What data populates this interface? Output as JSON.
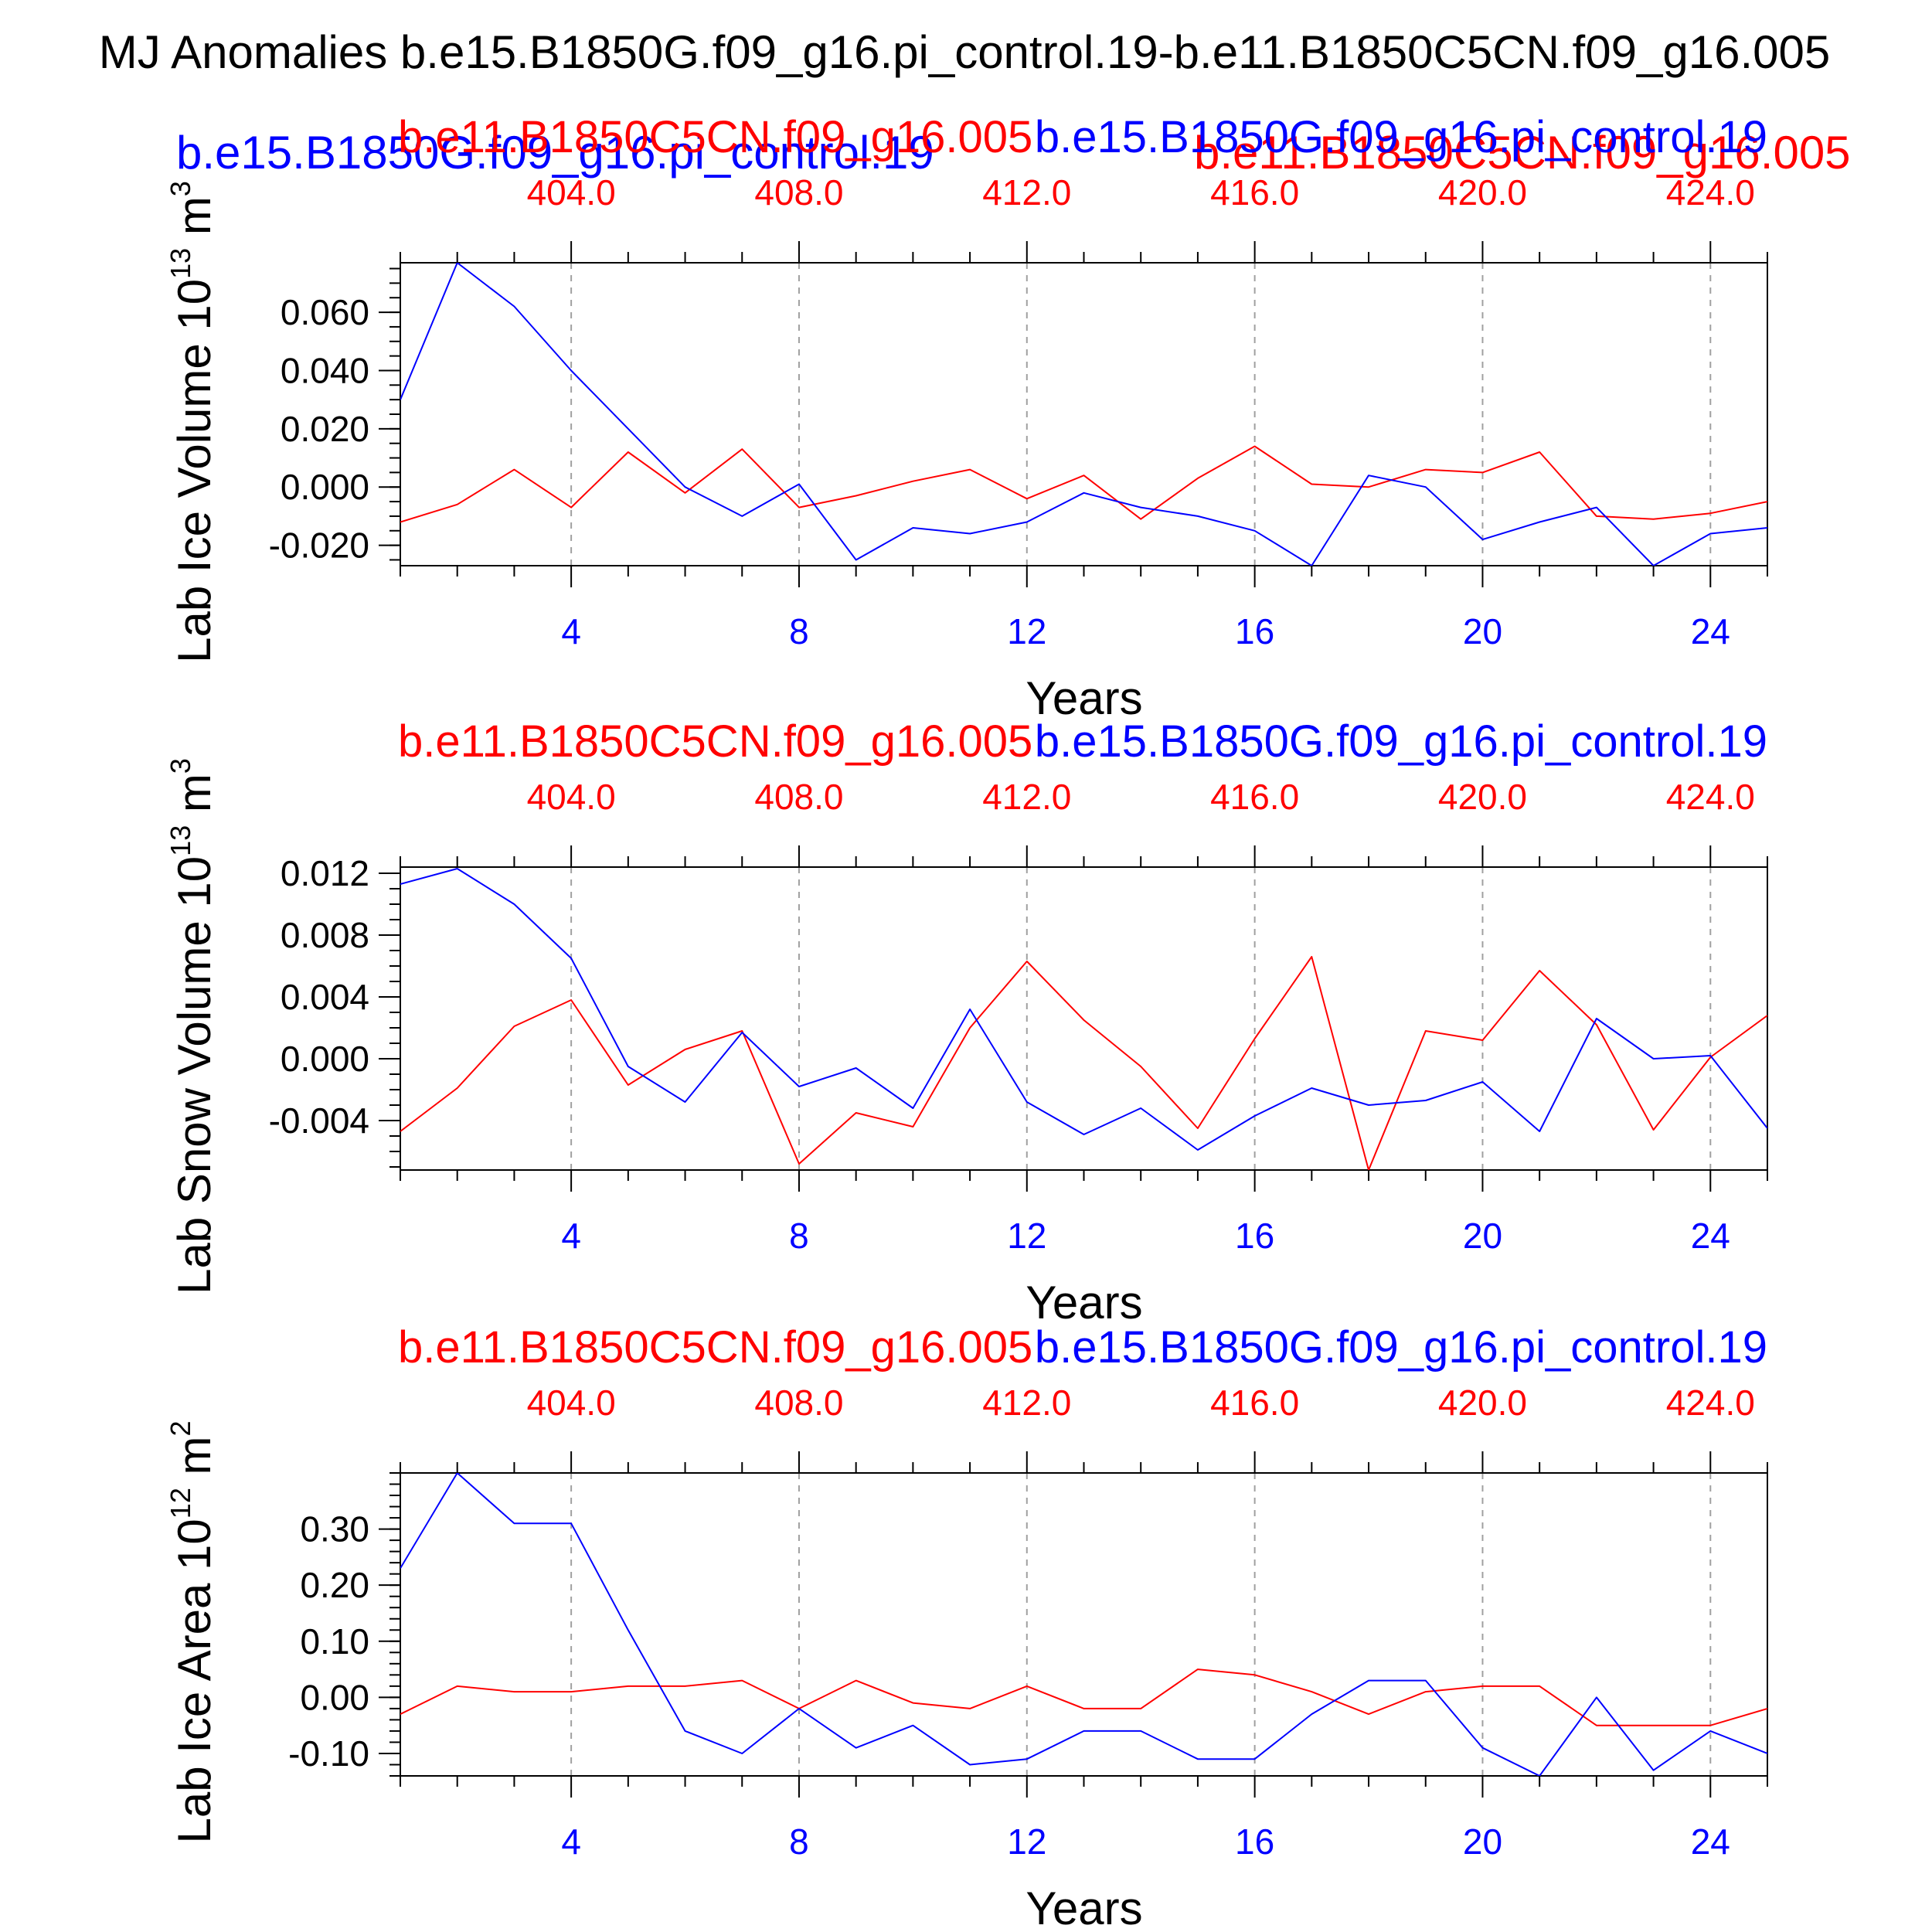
{
  "figure": {
    "title": "MJ Anomalies b.e15.B1850G.f09_g16.pi_control.19-b.e11.B1850C5CN.f09_g16.005",
    "legend_overlay": {
      "series_blue": "b.e15.B1850G.f09_g16.pi_control.19",
      "series_red": "b.e11.B1850C5CN.f09_g16.005"
    }
  },
  "colors": {
    "blue": "#0000ff",
    "red": "#ff0000",
    "axis": "#000000",
    "grid": "#a0a0a0"
  },
  "chart_data": [
    {
      "type": "line",
      "ylabel": "Lab Ice Volume 10",
      "ylabel_exp": "13",
      "ylabel_unit": " m",
      "ylabel_unit_exp": "3",
      "xlabel": "Years",
      "top_label_red": "b.e11.B1850C5CN.f09_g16.005",
      "top_label_blue": "b.e15.B1850G.f09_g16.pi_control.19",
      "xlim": [
        1,
        25
      ],
      "ylim": [
        -0.027,
        0.077
      ],
      "yticks": [
        -0.02,
        0.0,
        0.02,
        0.04,
        0.06
      ],
      "ytick_labels": [
        "-0.020",
        "0.000",
        "0.020",
        "0.040",
        "0.060"
      ],
      "yminor_step": 0.005,
      "xticks_bottom": [
        4,
        8,
        12,
        16,
        20,
        24
      ],
      "xtick_labels_bottom": [
        "4",
        "8",
        "12",
        "16",
        "20",
        "24"
      ],
      "xtick_labels_top": [
        "404.0",
        "408.0",
        "412.0",
        "416.0",
        "420.0",
        "424.0"
      ],
      "grid_x": [
        4,
        8,
        12,
        16,
        20,
        24
      ],
      "x": [
        1,
        2,
        3,
        4,
        5,
        6,
        7,
        8,
        9,
        10,
        11,
        12,
        13,
        14,
        15,
        16,
        17,
        18,
        19,
        20,
        21,
        22,
        23,
        24,
        25
      ],
      "series": [
        {
          "name": "b.e15.B1850G.f09_g16.pi_control.19",
          "color": "#0000ff",
          "values": [
            0.03,
            0.077,
            0.062,
            0.04,
            0.02,
            0.0,
            -0.01,
            0.001,
            -0.025,
            -0.014,
            -0.016,
            -0.012,
            -0.002,
            -0.007,
            -0.01,
            -0.015,
            -0.027,
            0.004,
            0.0,
            -0.018,
            -0.012,
            -0.007,
            -0.027,
            -0.016,
            -0.014
          ]
        },
        {
          "name": "b.e11.B1850C5CN.f09_g16.005",
          "color": "#ff0000",
          "values": [
            -0.012,
            -0.006,
            0.006,
            -0.007,
            0.012,
            -0.002,
            0.013,
            -0.007,
            -0.003,
            0.002,
            0.006,
            -0.004,
            0.004,
            -0.011,
            0.003,
            0.014,
            0.001,
            0.0,
            0.006,
            0.005,
            0.012,
            -0.01,
            -0.011,
            -0.009,
            -0.005
          ]
        }
      ]
    },
    {
      "type": "line",
      "ylabel": "Lab Snow Volume 10",
      "ylabel_exp": "13",
      "ylabel_unit": " m",
      "ylabel_unit_exp": "3",
      "xlabel": "Years",
      "top_label_red": "b.e11.B1850C5CN.f09_g16.005",
      "top_label_blue": "b.e15.B1850G.f09_g16.pi_control.19",
      "xlim": [
        1,
        25
      ],
      "ylim": [
        -0.0072,
        0.0124
      ],
      "yticks": [
        -0.004,
        0.0,
        0.004,
        0.008,
        0.012
      ],
      "ytick_labels": [
        "-0.004",
        "0.000",
        "0.004",
        "0.008",
        "0.012"
      ],
      "yminor_step": 0.001,
      "xticks_bottom": [
        4,
        8,
        12,
        16,
        20,
        24
      ],
      "xtick_labels_bottom": [
        "4",
        "8",
        "12",
        "16",
        "20",
        "24"
      ],
      "xtick_labels_top": [
        "404.0",
        "408.0",
        "412.0",
        "416.0",
        "420.0",
        "424.0"
      ],
      "grid_x": [
        4,
        8,
        12,
        16,
        20,
        24
      ],
      "x": [
        1,
        2,
        3,
        4,
        5,
        6,
        7,
        8,
        9,
        10,
        11,
        12,
        13,
        14,
        15,
        16,
        17,
        18,
        19,
        20,
        21,
        22,
        23,
        24,
        25
      ],
      "series": [
        {
          "name": "b.e15.B1850G.f09_g16.pi_control.19",
          "color": "#0000ff",
          "values": [
            0.0113,
            0.0123,
            0.01,
            0.0065,
            -0.0005,
            -0.0028,
            0.0017,
            -0.0018,
            -0.0006,
            -0.0032,
            0.0032,
            -0.0028,
            -0.0049,
            -0.0032,
            -0.0059,
            -0.0037,
            -0.0019,
            -0.003,
            -0.0027,
            -0.0015,
            -0.0047,
            0.0026,
            0.0,
            0.0002,
            -0.0045
          ]
        },
        {
          "name": "b.e11.B1850C5CN.f09_g16.005",
          "color": "#ff0000",
          "values": [
            -0.0047,
            -0.0019,
            0.0021,
            0.0038,
            -0.0017,
            0.0006,
            0.0018,
            -0.0068,
            -0.0035,
            -0.0044,
            0.002,
            0.0063,
            0.0025,
            -0.0005,
            -0.0045,
            0.0013,
            0.0066,
            -0.0072,
            0.0018,
            0.0012,
            0.0057,
            0.0022,
            -0.0046,
            0.0001,
            0.0028
          ]
        }
      ]
    },
    {
      "type": "line",
      "ylabel": "Lab Ice Area 10",
      "ylabel_exp": "12",
      "ylabel_unit": " m",
      "ylabel_unit_exp": "2",
      "xlabel": "Years",
      "top_label_red": "b.e11.B1850C5CN.f09_g16.005",
      "top_label_blue": "b.e15.B1850G.f09_g16.pi_control.19",
      "xlim": [
        1,
        25
      ],
      "ylim": [
        -0.14,
        0.4
      ],
      "yticks": [
        -0.1,
        0.0,
        0.1,
        0.2,
        0.3
      ],
      "ytick_labels": [
        "-0.10",
        "0.00",
        "0.10",
        "0.20",
        "0.30"
      ],
      "yminor_step": 0.02,
      "xticks_bottom": [
        4,
        8,
        12,
        16,
        20,
        24
      ],
      "xtick_labels_bottom": [
        "4",
        "8",
        "12",
        "16",
        "20",
        "24"
      ],
      "xtick_labels_top": [
        "404.0",
        "408.0",
        "412.0",
        "416.0",
        "420.0",
        "424.0"
      ],
      "grid_x": [
        4,
        8,
        12,
        16,
        20,
        24
      ],
      "x": [
        1,
        2,
        3,
        4,
        5,
        6,
        7,
        8,
        9,
        10,
        11,
        12,
        13,
        14,
        15,
        16,
        17,
        18,
        19,
        20,
        21,
        22,
        23,
        24,
        25
      ],
      "series": [
        {
          "name": "b.e15.B1850G.f09_g16.pi_control.19",
          "color": "#0000ff",
          "values": [
            0.23,
            0.4,
            0.31,
            0.31,
            0.12,
            -0.06,
            -0.1,
            -0.02,
            -0.09,
            -0.05,
            -0.12,
            -0.11,
            -0.06,
            -0.06,
            -0.11,
            -0.11,
            -0.03,
            0.03,
            0.03,
            -0.09,
            -0.14,
            0.0,
            -0.13,
            -0.06,
            -0.1
          ]
        },
        {
          "name": "b.e11.B1850C5CN.f09_g16.005",
          "color": "#ff0000",
          "values": [
            -0.03,
            0.02,
            0.01,
            0.01,
            0.02,
            0.02,
            0.03,
            -0.02,
            0.03,
            -0.01,
            -0.02,
            0.02,
            -0.02,
            -0.02,
            0.05,
            0.04,
            0.01,
            -0.03,
            0.01,
            0.02,
            0.02,
            -0.05,
            -0.05,
            -0.05,
            -0.02
          ]
        }
      ]
    }
  ]
}
